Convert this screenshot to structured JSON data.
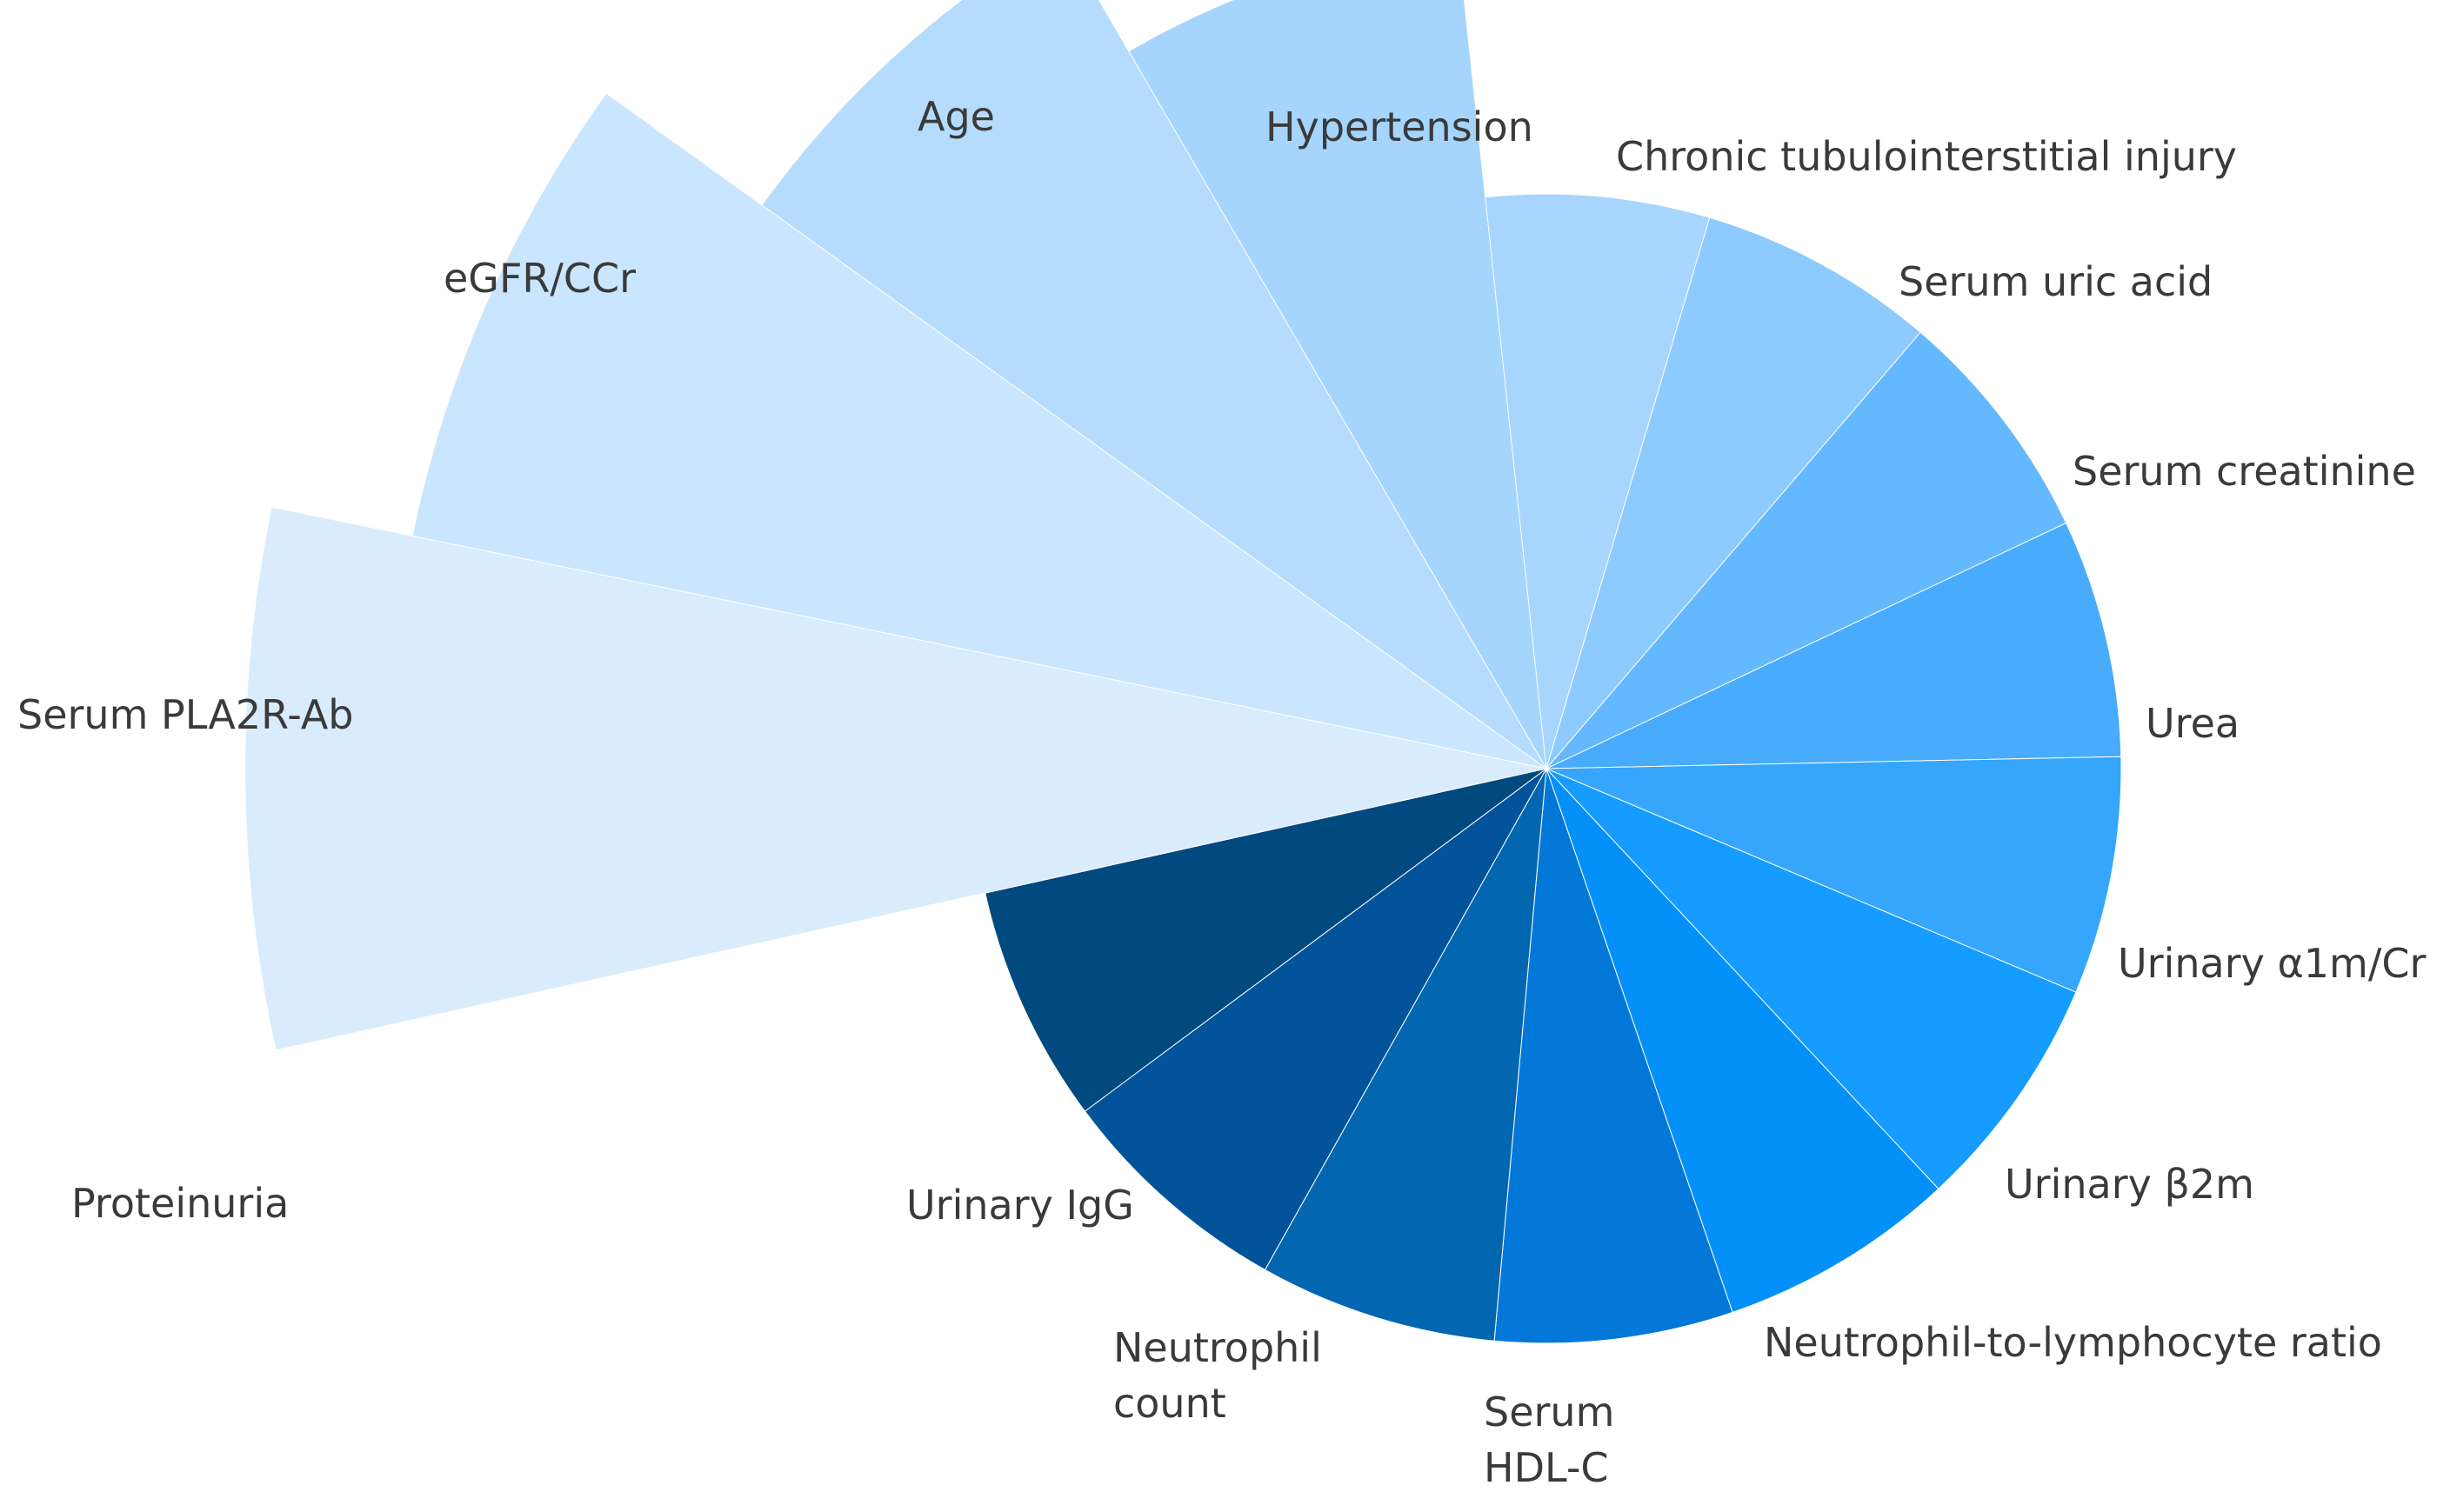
{
  "chart_data": {
    "type": "polar-area",
    "title": "",
    "start_angle_deg": 262.4,
    "sweep_deg": 24.1,
    "categories": [
      {
        "label": "Hypertension",
        "value": 0.72,
        "color": "#a7d5fd"
      },
      {
        "label": "Chronic tubulointerstitial injury",
        "value": 0.72,
        "color": "#8dcafe"
      },
      {
        "label": "Serum uric acid",
        "value": 0.72,
        "color": "#64b8fd"
      },
      {
        "label": "Serum creatinine",
        "value": 0.72,
        "color": "#48abfb"
      },
      {
        "label": "Urea",
        "value": 0.72,
        "color": "#35a6fc"
      },
      {
        "label": "Urinary α1m/Cr",
        "value": 0.72,
        "color": "#169bfe"
      },
      {
        "label": "Urinary β2m",
        "value": 0.72,
        "color": "#0390f8"
      },
      {
        "label": "Neutrophil-to-lymphocyte ratio",
        "value": 0.72,
        "color": "#0378d9"
      },
      {
        "label": "Serum HDL-C",
        "value": 0.72,
        "color": "#0266b0"
      },
      {
        "label": "Neutrophil count",
        "value": 0.72,
        "color": "#02539a"
      },
      {
        "label": "Urinary IgG",
        "value": 0.72,
        "color": "#004a80"
      },
      {
        "label": "Proteinuria",
        "value": 1.63,
        "color": "#d8ecfd"
      },
      {
        "label": "Serum PLA2R-Ab",
        "value": 1.45,
        "color": "#c9e6fe"
      },
      {
        "label": "eGFR/CCr",
        "value": 1.21,
        "color": "#b5dcfc"
      },
      {
        "label": "Age",
        "value": 1.04,
        "color": "#a5d5fd"
      }
    ]
  }
}
